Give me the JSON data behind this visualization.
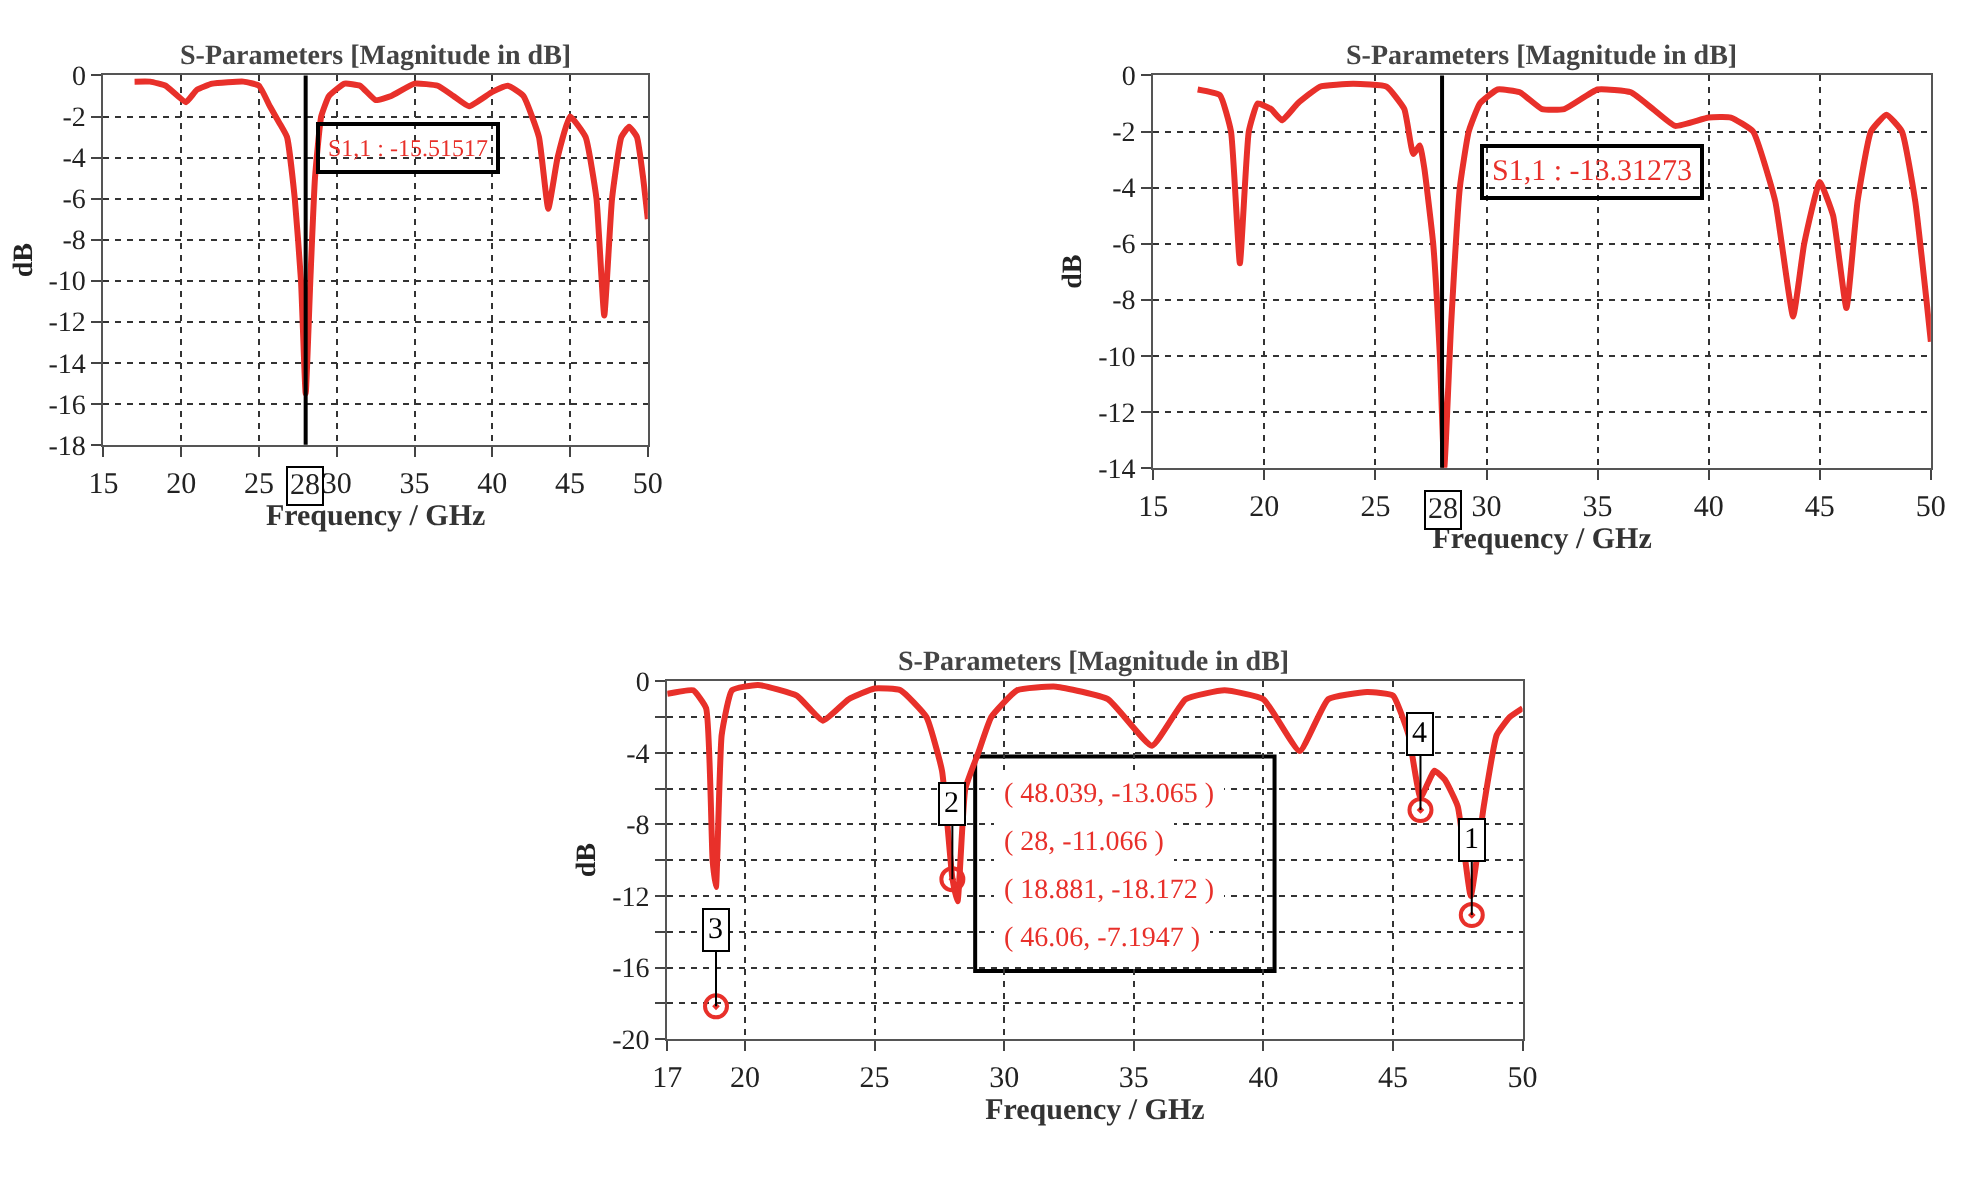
{
  "chart_data": [
    {
      "type": "line",
      "title": "S-Parameters [Magnitude in dB]",
      "xlabel": "Frequency / GHz",
      "ylabel": "dB",
      "xlim": [
        15,
        50
      ],
      "ylim": [
        -18,
        0
      ],
      "xticks": [
        15,
        20,
        25,
        30,
        35,
        40,
        45,
        50
      ],
      "yticks": [
        0,
        -2,
        -4,
        -6,
        -8,
        -10,
        -12,
        -14,
        -16,
        -18
      ],
      "grid": true,
      "line_style": "solid",
      "marker": "none",
      "x": [
        17,
        18,
        19,
        20.3,
        21,
        22,
        24,
        25,
        25.7,
        26.3,
        26.8,
        27.3,
        27.7,
        28,
        28.3,
        28.6,
        29,
        29.5,
        30.5,
        31.5,
        32.5,
        33.5,
        35,
        36.5,
        37.5,
        38.5,
        40,
        41,
        42,
        43,
        43.6,
        44.2,
        45,
        46,
        46.7,
        47.2,
        47.7,
        48.3,
        48.8,
        49.3,
        49.7,
        50
      ],
      "series": [
        {
          "color": "#e8302a",
          "values": [
            -0.3,
            -0.3,
            -0.5,
            -1.3,
            -0.7,
            -0.4,
            -0.3,
            -0.5,
            -1.5,
            -2.3,
            -3,
            -6,
            -10,
            -15.5,
            -10,
            -5,
            -2,
            -1,
            -0.4,
            -0.5,
            -1.2,
            -1,
            -0.4,
            -0.5,
            -1,
            -1.5,
            -0.8,
            -0.5,
            -1,
            -3,
            -6.5,
            -4,
            -2,
            -3,
            -6,
            -11.7,
            -6,
            -3,
            -2.5,
            -3,
            -5,
            -7
          ]
        }
      ],
      "ref_lines": [
        {
          "axis": "x",
          "value": 28,
          "label": "28",
          "color": "#000000"
        }
      ],
      "annotations": [
        "S1,1 : -15.51517"
      ]
    },
    {
      "type": "line",
      "title": "S-Parameters [Magnitude in dB]",
      "xlabel": "Frequency / GHz",
      "ylabel": "dB",
      "xlim": [
        15,
        50
      ],
      "ylim": [
        -14,
        0
      ],
      "xticks": [
        15,
        20,
        25,
        30,
        35,
        40,
        45,
        50
      ],
      "yticks": [
        0,
        -2,
        -4,
        -6,
        -8,
        -10,
        -12,
        -14
      ],
      "grid": true,
      "line_style": "solid",
      "marker": "none",
      "x": [
        17,
        18,
        18.5,
        18.9,
        19.3,
        19.7,
        20.3,
        20.8,
        21.5,
        22.5,
        24,
        25.5,
        26.3,
        26.7,
        27,
        27.2,
        27.6,
        27.9,
        28.1,
        28.4,
        28.8,
        29.2,
        29.7,
        30.5,
        31.5,
        32.5,
        33.5,
        35,
        36.5,
        37.5,
        38.5,
        40,
        41,
        42,
        43,
        43.8,
        44.3,
        45,
        45.6,
        46.2,
        46.7,
        47.3,
        48,
        48.7,
        49.3,
        49.8,
        50
      ],
      "series": [
        {
          "color": "#e8302a",
          "values": [
            -0.5,
            -0.7,
            -2,
            -6.7,
            -2,
            -1,
            -1.2,
            -1.6,
            -1,
            -0.4,
            -0.3,
            -0.4,
            -1.2,
            -2.8,
            -2.5,
            -3.3,
            -6,
            -10,
            -14,
            -9,
            -4,
            -2,
            -1,
            -0.5,
            -0.6,
            -1.2,
            -1.2,
            -0.5,
            -0.6,
            -1.2,
            -1.8,
            -1.5,
            -1.5,
            -2,
            -4.5,
            -8.6,
            -6,
            -3.8,
            -5,
            -8.3,
            -4.5,
            -2,
            -1.4,
            -2,
            -4.5,
            -8,
            -9.5
          ]
        }
      ],
      "ref_lines": [
        {
          "axis": "x",
          "value": 28,
          "label": "28",
          "color": "#000000"
        }
      ],
      "annotations": [
        "S1,1 : -13.31273"
      ]
    },
    {
      "type": "line",
      "title": "S-Parameters [Magnitude in dB]",
      "xlabel": "Frequency / GHz",
      "ylabel": "dB",
      "xlim": [
        17,
        50
      ],
      "ylim": [
        -20,
        0
      ],
      "xticks": [
        17,
        20,
        25,
        30,
        35,
        40,
        45,
        50
      ],
      "yticks": [
        0,
        {
          "value": -2,
          "label": null
        },
        -4,
        {
          "value": -6,
          "label": null
        },
        -8,
        {
          "value": -10,
          "label": null
        },
        -12,
        {
          "value": -14,
          "label": null
        },
        -16,
        {
          "value": -18,
          "label": null
        },
        -20
      ],
      "grid": true,
      "line_style": "solid",
      "marker": "none",
      "x": [
        17,
        18,
        18.5,
        18.75,
        18.88,
        19.1,
        19.5,
        20.5,
        22,
        23,
        24,
        25,
        26,
        27,
        27.6,
        28,
        28.2,
        28.5,
        29,
        29.5,
        30.5,
        32,
        34,
        35.7,
        37,
        38.5,
        40,
        41.4,
        42.5,
        44,
        45,
        45.6,
        46.06,
        46.6,
        47,
        47.5,
        48,
        48.5,
        49,
        49.5,
        50
      ],
      "series": [
        {
          "color": "#e8302a",
          "values": [
            -0.7,
            -0.5,
            -1.5,
            -10,
            -11.5,
            -3,
            -0.5,
            -0.2,
            -0.8,
            -2.2,
            -1,
            -0.4,
            -0.5,
            -2,
            -5,
            -11,
            -12.3,
            -6,
            -4,
            -2,
            -0.5,
            -0.3,
            -1,
            -3.6,
            -1,
            -0.5,
            -1,
            -3.9,
            -1,
            -0.6,
            -0.8,
            -3,
            -6.5,
            -5,
            -5.5,
            -7,
            -12,
            -7,
            -3,
            -2,
            -1.5
          ]
        },
        {
          "type": "scatter",
          "marker": "circle",
          "color": "#e8302a",
          "x": [
            48.039,
            28,
            18.881,
            46.06
          ],
          "values": [
            -13.065,
            -11.066,
            -18.172,
            -7.1947
          ]
        }
      ],
      "annotations": [
        {
          "text": "1",
          "x": 48.039,
          "y": -13.065
        },
        {
          "text": "2",
          "x": 28,
          "y": -11.066
        },
        {
          "text": "3",
          "x": 18.881,
          "y": -18.172
        },
        {
          "text": "4",
          "x": 46.06,
          "y": -7.1947
        },
        "( 48.039, -13.065 )",
        "( 28, -11.066 )",
        "( 18.881, -18.172 )",
        "( 46.06, -7.1947 )"
      ]
    }
  ]
}
